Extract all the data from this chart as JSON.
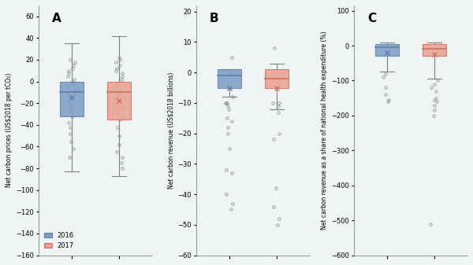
{
  "panel_labels": [
    "A",
    "B",
    "C"
  ],
  "years": [
    "2016",
    "2017"
  ],
  "colors": [
    "#7b9cc4",
    "#e8a090"
  ],
  "edge_colors": [
    "#6080a8",
    "#cc7060"
  ],
  "median_colors": [
    "#5070a0",
    "#c06050"
  ],
  "mean_marker_colors": [
    "#5588bb",
    "#cc6655"
  ],
  "background": "#f0f4f4",
  "panelA": {
    "ylabel": "Net carbon prices (US$2018 per tCO₂)",
    "ylim": [
      -160,
      70
    ],
    "yticks": [
      -160,
      -140,
      -120,
      -100,
      -80,
      -60,
      -40,
      -20,
      0,
      20,
      40,
      60
    ],
    "box_2016": {
      "q1": -32,
      "median": -10,
      "q3": 0,
      "whisker_low": -83,
      "whisker_high": 35
    },
    "box_2017": {
      "q1": -35,
      "median": -10,
      "q3": 0,
      "whisker_low": -87,
      "whisker_high": 42
    },
    "outliers_2016": [
      20,
      18,
      15,
      12,
      10,
      8,
      5,
      2,
      0,
      -2,
      -5,
      -8,
      -10,
      -12,
      -15,
      -18,
      -20,
      -22,
      -25,
      -28,
      -32,
      -38,
      -42,
      -48,
      -55,
      -62,
      -70
    ],
    "outliers_2017": [
      22,
      20,
      18,
      15,
      12,
      10,
      8,
      5,
      2,
      -2,
      -5,
      -8,
      -12,
      -15,
      -18,
      -22,
      -25,
      -30,
      -35,
      -42,
      -50,
      -58,
      -65,
      -70,
      -75,
      -80
    ],
    "mean_2016": -15,
    "mean_2017": -18
  },
  "panelB": {
    "ylabel": "Net carbon revenue (US$2018 billions)",
    "ylim": [
      -60,
      22
    ],
    "yticks": [
      -60,
      -50,
      -40,
      -30,
      -20,
      -10,
      0,
      10,
      20
    ],
    "box_2016": {
      "q1": -5,
      "median": -1,
      "q3": 1,
      "whisker_low": -8,
      "whisker_high": 1
    },
    "box_2017": {
      "q1": -5,
      "median": -2,
      "q3": 1,
      "whisker_low": -12,
      "whisker_high": 3
    },
    "outliers_2016": [
      5,
      0,
      -8,
      -10,
      -10,
      -10,
      -11,
      -12,
      -15,
      -16,
      -18,
      -20,
      -25,
      -32,
      -33,
      -40,
      -43,
      -45
    ],
    "outliers_2017": [
      8,
      -10,
      -10,
      -11,
      -13,
      -20,
      -22,
      -38,
      -44,
      -48,
      -50
    ],
    "mean_2016": -5,
    "mean_2017": -5
  },
  "panelC": {
    "ylabel": "Net carbon revenue as a share of national health expenditure (%)",
    "ylim": [
      -600,
      115
    ],
    "yticks": [
      -600,
      -500,
      -400,
      -300,
      -200,
      -100,
      0,
      100
    ],
    "box_2016": {
      "q1": -30,
      "median": -5,
      "q3": 5,
      "whisker_low": -75,
      "whisker_high": 8
    },
    "box_2017": {
      "q1": -30,
      "median": -8,
      "q3": 5,
      "whisker_low": -95,
      "whisker_high": 10
    },
    "outliers_2016": [
      -80,
      -90,
      -120,
      -140,
      -155,
      -160
    ],
    "outliers_2017": [
      -100,
      -110,
      -120,
      -130,
      -150,
      -155,
      -160,
      -170,
      -185,
      -200,
      -510
    ],
    "mean_2016": -20,
    "mean_2017": -25
  }
}
